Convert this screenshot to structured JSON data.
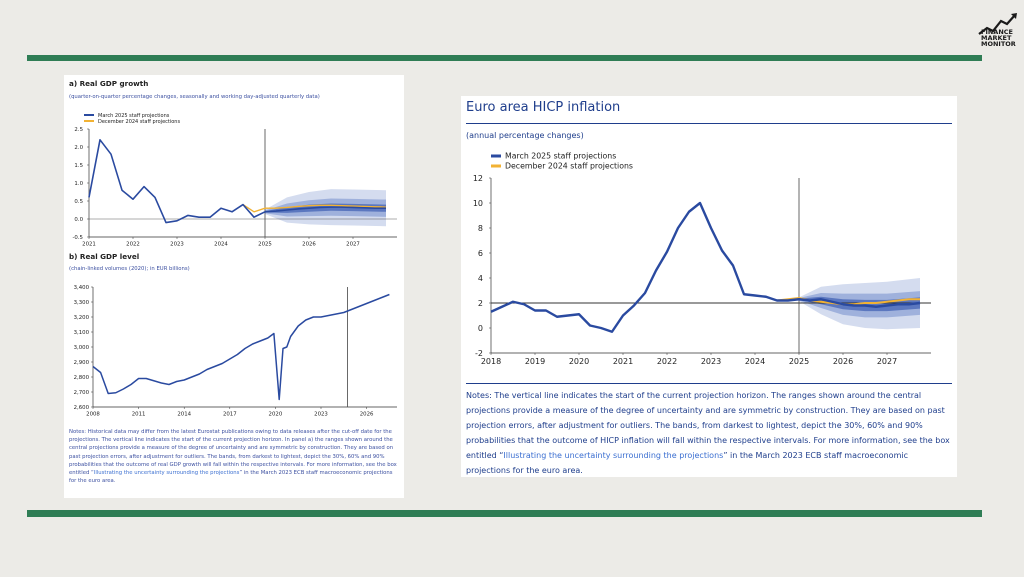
{
  "logo": {
    "line1": "FINANCE",
    "line2": "MARKET",
    "line3": "MONITOR"
  },
  "left_panel": {
    "gdp_growth": {
      "title": "a) Real GDP growth",
      "subtitle": "(quarter-on-quarter percentage changes, seasonally and working day-adjusted quarterly data)"
    },
    "gdp_level": {
      "title": "b) Real GDP level",
      "subtitle": "(chain-linked volumes (2020); in EUR billions)"
    },
    "notes_prefix": "Notes: Historical data may differ from the latest Eurostat publications owing to data releases after the cut-off date for the projections. The vertical line indicates the start of the current projection horizon. In panel a) the ranges shown around the central projections provide a measure of the degree of uncertainty and are symmetric by construction. They are based on past projection errors, after adjustment for outliers. The bands, from darkest to lightest, depict the 30%, 60% and 90% probabilities that the outcome of real GDP growth will fall within the respective intervals. For more information, see the box entitled “",
    "notes_link": "Illustrating the uncertainty surrounding the projections",
    "notes_suffix": "” in the March 2023 ECB staff macroeconomic projections for the euro area."
  },
  "right_panel": {
    "title": "Euro area HICP inflation",
    "subtitle": "(annual percentage changes)",
    "notes_prefix": "Notes: The vertical line indicates the start of the current projection horizon. The ranges shown around the central projections provide a measure of the degree of uncertainty and are symmetric by construction. They are based on past projection errors, after adjustment for outliers. The bands, from darkest to lightest, depict the 30%, 60% and 90% probabilities that the outcome of HICP inflation will fall within the respective intervals. For more information, see the box entitled “",
    "notes_link": "Illustrating the uncertainty surrounding the projections",
    "notes_suffix": "” in the March 2023 ECB staff macroeconomic projections for the euro area."
  },
  "colors": {
    "march": "#2a4aa0",
    "december": "#f2b233",
    "band_dark": "#5b77bf",
    "band_mid": "#9fb1dc",
    "band_light": "#d4dcef",
    "axis": "#333333",
    "brand_green": "#2f7d55"
  },
  "chart_data": [
    {
      "id": "gdp_growth",
      "type": "line",
      "title": "a) Real GDP growth",
      "legend": [
        "March 2025 staff projections",
        "December 2024 staff projections"
      ],
      "legend_position": "top-left",
      "x_ticks": [
        "2021",
        "2022",
        "2023",
        "2024",
        "2025",
        "2026",
        "2027"
      ],
      "y_ticks": [
        "2.5",
        "2.0",
        "1.5",
        "1.0",
        "0.5",
        "0.0",
        "-0.5"
      ],
      "xlim": [
        2021,
        2028
      ],
      "ylim": [
        -0.5,
        2.5
      ],
      "projection_start": 2025.0,
      "series": [
        {
          "name": "March 2025 staff projections",
          "x": [
            2021.0,
            2021.25,
            2021.5,
            2021.75,
            2022.0,
            2022.25,
            2022.5,
            2022.75,
            2023.0,
            2023.25,
            2023.5,
            2023.75,
            2024.0,
            2024.25,
            2024.5,
            2024.75,
            2025.0,
            2025.25,
            2025.5,
            2025.75,
            2026.0,
            2026.25,
            2026.5,
            2026.75,
            2027.0,
            2027.25,
            2027.5,
            2027.75
          ],
          "y": [
            0.6,
            2.2,
            1.8,
            0.8,
            0.55,
            0.9,
            0.6,
            -0.1,
            -0.05,
            0.1,
            0.05,
            0.05,
            0.3,
            0.2,
            0.4,
            0.05,
            0.2,
            0.22,
            0.25,
            0.28,
            0.3,
            0.32,
            0.33,
            0.33,
            0.32,
            0.31,
            0.3,
            0.3
          ]
        },
        {
          "name": "December 2024 staff projections",
          "x": [
            2024.5,
            2024.75,
            2025.0,
            2025.25,
            2025.5,
            2025.75,
            2026.0,
            2026.25,
            2026.5,
            2026.75,
            2027.0,
            2027.25,
            2027.5,
            2027.75
          ],
          "y": [
            0.4,
            0.2,
            0.3,
            0.3,
            0.32,
            0.35,
            0.37,
            0.38,
            0.38,
            0.37,
            0.36,
            0.35,
            0.34,
            0.33
          ]
        }
      ],
      "bands": {
        "x": [
          2025.0,
          2025.5,
          2026.0,
          2026.5,
          2027.0,
          2027.75
        ],
        "center": [
          0.2,
          0.25,
          0.3,
          0.33,
          0.32,
          0.3
        ],
        "half_width_30": [
          0.02,
          0.08,
          0.1,
          0.1,
          0.1,
          0.1
        ],
        "half_width_60": [
          0.04,
          0.18,
          0.22,
          0.24,
          0.24,
          0.24
        ],
        "half_width_90": [
          0.06,
          0.35,
          0.45,
          0.5,
          0.5,
          0.5
        ]
      }
    },
    {
      "id": "gdp_level",
      "type": "line",
      "title": "b) Real GDP level",
      "x_ticks": [
        "2008",
        "2011",
        "2014",
        "2017",
        "2020",
        "2023",
        "2026"
      ],
      "y_ticks": [
        "3,400",
        "3,300",
        "3,200",
        "3,100",
        "3,000",
        "2,900",
        "2,800",
        "2,700",
        "2,600"
      ],
      "xlim": [
        2008,
        2028
      ],
      "ylim": [
        2600,
        3400
      ],
      "projection_start": 2024.75,
      "series": [
        {
          "name": "Real GDP level",
          "x": [
            2008.0,
            2008.5,
            2009.0,
            2009.5,
            2010.0,
            2010.5,
            2011.0,
            2011.5,
            2012.0,
            2012.5,
            2013.0,
            2013.5,
            2014.0,
            2014.5,
            2015.0,
            2015.5,
            2016.0,
            2016.5,
            2017.0,
            2017.5,
            2018.0,
            2018.5,
            2019.0,
            2019.5,
            2019.9,
            2020.25,
            2020.5,
            2020.75,
            2021.0,
            2021.5,
            2022.0,
            2022.5,
            2023.0,
            2023.5,
            2024.0,
            2024.5,
            2025.0,
            2025.5,
            2026.0,
            2026.5,
            2027.0,
            2027.5
          ],
          "y": [
            2870,
            2830,
            2690,
            2695,
            2720,
            2750,
            2790,
            2790,
            2775,
            2760,
            2750,
            2770,
            2780,
            2800,
            2820,
            2850,
            2870,
            2890,
            2920,
            2950,
            2990,
            3020,
            3040,
            3060,
            3090,
            2650,
            2990,
            3000,
            3070,
            3140,
            3180,
            3200,
            3200,
            3210,
            3220,
            3230,
            3250,
            3270,
            3290,
            3310,
            3330,
            3350
          ]
        }
      ]
    },
    {
      "id": "hicp",
      "type": "line",
      "title": "Euro area HICP inflation",
      "subtitle": "(annual percentage changes)",
      "legend": [
        "March 2025 staff projections",
        "December 2024 staff projections"
      ],
      "legend_position": "top-left",
      "x_ticks": [
        "2018",
        "2019",
        "2020",
        "2021",
        "2022",
        "2023",
        "2024",
        "2025",
        "2026",
        "2027"
      ],
      "y_ticks": [
        "12",
        "10",
        "8",
        "6",
        "4",
        "2",
        "0",
        "-2"
      ],
      "xlim": [
        2018,
        2028
      ],
      "ylim": [
        -2,
        12
      ],
      "projection_start": 2025.0,
      "series": [
        {
          "name": "March 2025 staff projections",
          "x": [
            2018.0,
            2018.25,
            2018.5,
            2018.75,
            2019.0,
            2019.25,
            2019.5,
            2019.75,
            2020.0,
            2020.25,
            2020.5,
            2020.75,
            2021.0,
            2021.25,
            2021.5,
            2021.75,
            2022.0,
            2022.25,
            2022.5,
            2022.75,
            2023.0,
            2023.25,
            2023.5,
            2023.75,
            2024.0,
            2024.25,
            2024.5,
            2024.75,
            2025.0,
            2025.25,
            2025.5,
            2025.75,
            2026.0,
            2026.25,
            2026.5,
            2026.75,
            2027.0,
            2027.25,
            2027.5,
            2027.75
          ],
          "y": [
            1.3,
            1.7,
            2.1,
            1.9,
            1.4,
            1.4,
            0.9,
            1.0,
            1.1,
            0.2,
            0.0,
            -0.3,
            1.0,
            1.8,
            2.8,
            4.6,
            6.1,
            8.0,
            9.3,
            10.0,
            8.0,
            6.2,
            5.0,
            2.7,
            2.6,
            2.5,
            2.2,
            2.2,
            2.3,
            2.2,
            2.3,
            2.1,
            1.9,
            1.8,
            1.8,
            1.7,
            1.8,
            1.9,
            1.9,
            2.0
          ]
        },
        {
          "name": "December 2024 staff projections",
          "x": [
            2024.5,
            2024.75,
            2025.0,
            2025.25,
            2025.5,
            2025.75,
            2026.0,
            2026.25,
            2026.5,
            2026.75,
            2027.0,
            2027.25,
            2027.5,
            2027.75
          ],
          "y": [
            2.2,
            2.3,
            2.4,
            2.2,
            2.1,
            2.0,
            1.9,
            1.9,
            2.0,
            2.0,
            2.1,
            2.2,
            2.3,
            2.3
          ]
        }
      ],
      "bands": {
        "x": [
          2025.0,
          2025.5,
          2026.0,
          2026.5,
          2027.0,
          2027.75
        ],
        "center": [
          2.3,
          2.2,
          1.9,
          1.8,
          1.8,
          2.0
        ],
        "half_width_30": [
          0.05,
          0.3,
          0.4,
          0.45,
          0.45,
          0.45
        ],
        "half_width_60": [
          0.1,
          0.6,
          0.85,
          0.95,
          0.95,
          0.95
        ],
        "half_width_90": [
          0.15,
          1.1,
          1.6,
          1.8,
          1.9,
          2.0
        ]
      }
    }
  ]
}
